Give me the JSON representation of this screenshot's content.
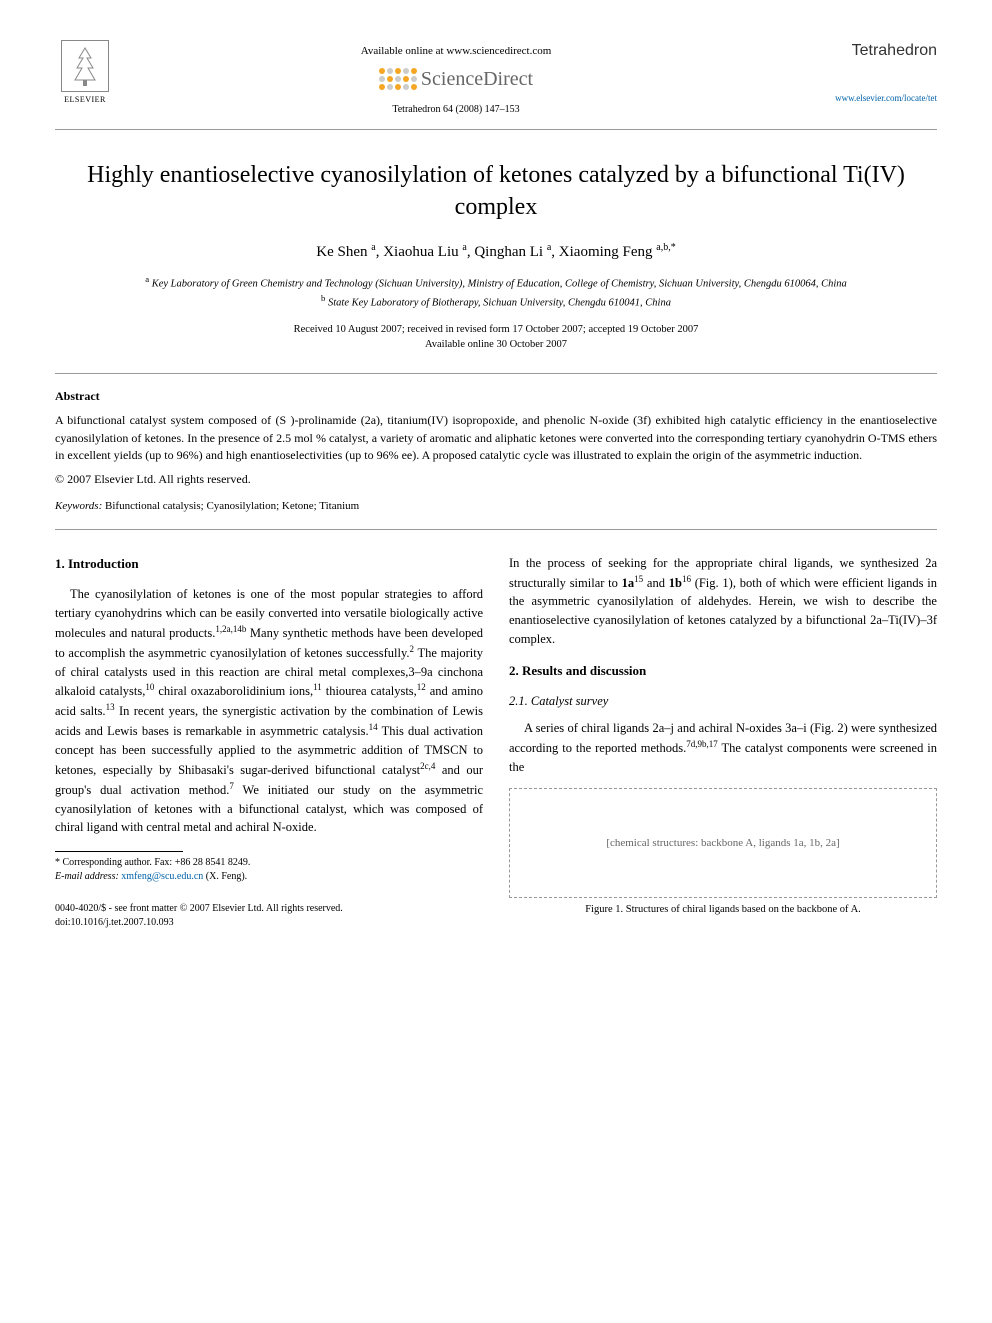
{
  "header": {
    "publisher": "ELSEVIER",
    "avail_online": "Available online at www.sciencedirect.com",
    "sd_brand": "ScienceDirect",
    "citation": "Tetrahedron 64 (2008) 147–153",
    "journal": "Tetrahedron",
    "journal_url": "www.elsevier.com/locate/tet"
  },
  "title": "Highly enantioselective cyanosilylation of ketones catalyzed by a bifunctional Ti(IV) complex",
  "authors_html": "Ke Shen <sup>a</sup>, Xiaohua Liu <sup>a</sup>, Qinghan Li <sup>a</sup>, Xiaoming Feng <sup>a,b,*</sup>",
  "affils": {
    "a": "Key Laboratory of Green Chemistry and Technology (Sichuan University), Ministry of Education, College of Chemistry, Sichuan University, Chengdu 610064, China",
    "b": "State Key Laboratory of Biotherapy, Sichuan University, Chengdu 610041, China"
  },
  "dates": {
    "line1": "Received 10 August 2007; received in revised form 17 October 2007; accepted 19 October 2007",
    "line2": "Available online 30 October 2007"
  },
  "abstract": {
    "head": "Abstract",
    "body": "A bifunctional catalyst system composed of (S )-prolinamide (2a), titanium(IV) isopropoxide, and phenolic N-oxide (3f) exhibited high catalytic efficiency in the enantioselective cyanosilylation of ketones. In the presence of 2.5 mol % catalyst, a variety of aromatic and aliphatic ketones were converted into the corresponding tertiary cyanohydrin O-TMS ethers in excellent yields (up to 96%) and high enantioselectivities (up to 96% ee). A proposed catalytic cycle was illustrated to explain the origin of the asymmetric induction.",
    "copyright": "© 2007 Elsevier Ltd. All rights reserved."
  },
  "keywords": {
    "label": "Keywords:",
    "list": "Bifunctional catalysis; Cyanosilylation; Ketone; Titanium"
  },
  "intro": {
    "head": "1. Introduction",
    "p1": "The cyanosilylation of ketones is one of the most popular strategies to afford tertiary cyanohydrins which can be easily converted into versatile biologically active molecules and natural products.1,2a,14b Many synthetic methods have been developed to accomplish the asymmetric cyanosilylation of ketones successfully.2 The majority of chiral catalysts used in this reaction are chiral metal complexes,3–9a cinchona alkaloid catalysts,10 chiral oxazaborolidinium ions,11 thiourea catalysts,12 and amino acid salts.13 In recent years, the synergistic activation by the combination of Lewis acids and Lewis bases is remarkable in asymmetric catalysis.14 This dual activation concept has been successfully applied to the asymmetric addition of TMSCN to ketones, especially by Shibasaki's sugar-derived bifunctional catalyst2c,4 and our group's dual activation method.7 We initiated our study on the asymmetric cyanosilylation of ketones with a bifunctional catalyst, which was composed of chiral ligand with central metal and achiral N-oxide.",
    "p2": "In the process of seeking for the appropriate chiral ligands, we synthesized 2a structurally similar to 1a15 and 1b16 (Fig. 1), both of which were efficient ligands in the asymmetric cyanosilylation of aldehydes. Herein, we wish to describe the enantioselective cyanosilylation of ketones catalyzed by a bifunctional 2a–Ti(IV)–3f complex."
  },
  "results": {
    "head": "2. Results and discussion",
    "sub1": "2.1. Catalyst survey",
    "p1": "A series of chiral ligands 2a–j and achiral N-oxides 3a–i (Fig. 2) were synthesized according to the reported methods.7d,9b,17 The catalyst components were screened in the"
  },
  "figure1": {
    "placeholder": "[chemical structures: backbone A, ligands 1a, 1b, 2a]",
    "caption": "Figure 1. Structures of chiral ligands based on the backbone of A."
  },
  "footnotes": {
    "corr": "* Corresponding author. Fax: +86 28 8541 8249.",
    "email_label": "E-mail address:",
    "email": "xmfeng@scu.edu.cn",
    "email_who": "(X. Feng)."
  },
  "bottom": {
    "issn": "0040-4020/$ - see front matter © 2007 Elsevier Ltd. All rights reserved.",
    "doi": "doi:10.1016/j.tet.2007.10.093"
  },
  "colors": {
    "link": "#0061a8",
    "rule": "#999999",
    "text": "#000000"
  }
}
